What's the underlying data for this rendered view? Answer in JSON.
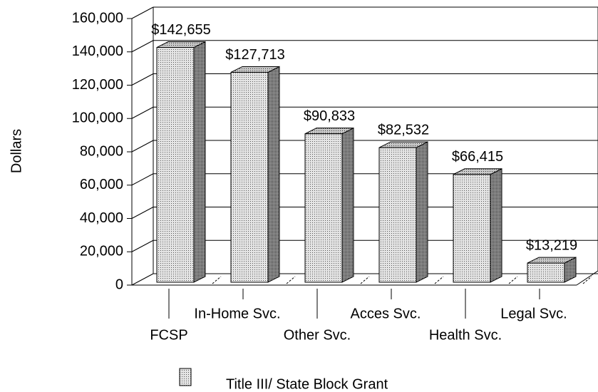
{
  "chart_data": {
    "type": "bar3d",
    "categories": [
      "FCSP",
      "In-Home Svc.",
      "Other Svc.",
      "Acces Svc.",
      "Health Svc.",
      "Legal Svc."
    ],
    "series": [
      {
        "name": "Title III/ State Block Grant",
        "color": "#b8b8b8",
        "values": [
          142655,
          127713,
          90833,
          82532,
          66415,
          13219
        ],
        "value_labels": [
          "$142,655",
          "$127,713",
          "$90,833",
          "$82,532",
          "$66,415",
          "$13,219"
        ]
      }
    ],
    "ylabel": "Dollars",
    "ylim": [
      0,
      160000
    ],
    "yticks": [
      0,
      {
        "value": 20000,
        "label": "20,000"
      },
      {
        "value": 40000,
        "label": "40,000"
      },
      {
        "value": 60000,
        "label": "60,000"
      },
      {
        "value": 80000,
        "label": "80,000"
      },
      {
        "value": 100000,
        "label": "100,000"
      },
      {
        "value": 120000,
        "label": "120,000"
      },
      {
        "value": 140000,
        "label": "140,000"
      },
      {
        "value": 160000,
        "label": "160,000"
      }
    ],
    "grid": true
  }
}
